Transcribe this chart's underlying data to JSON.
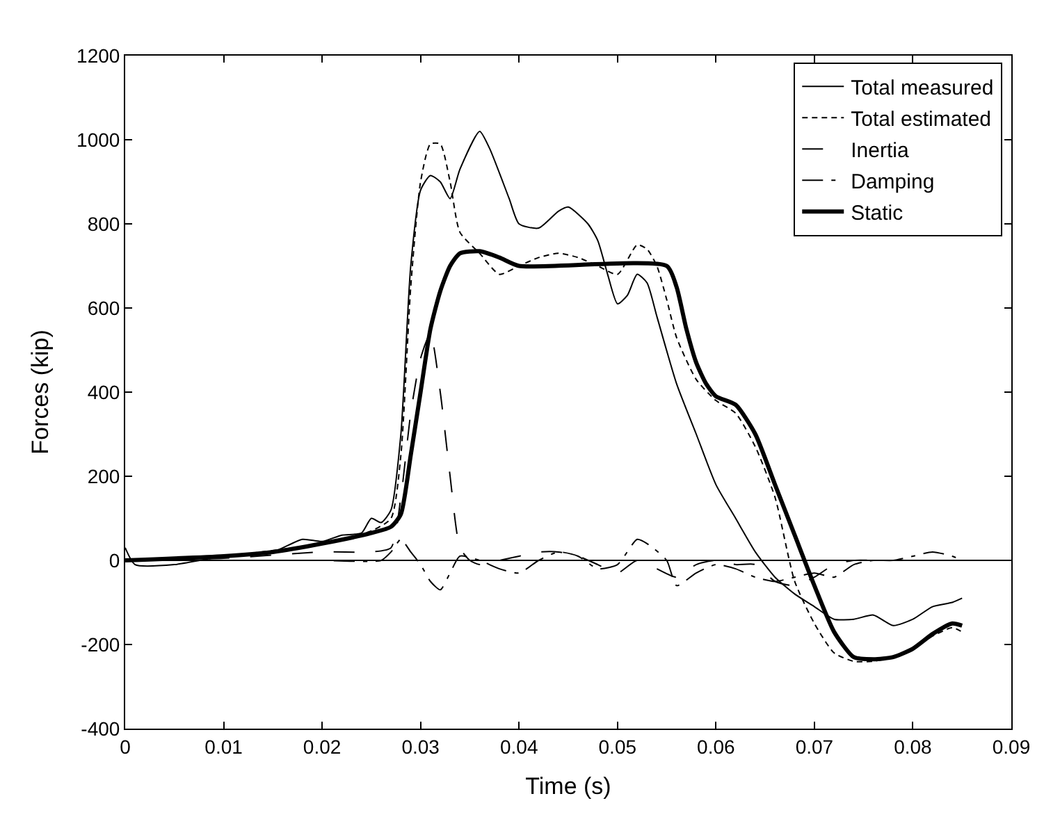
{
  "chart_data": {
    "type": "line",
    "xlabel": "Time (s)",
    "ylabel": "Forces (kip)",
    "xlim": [
      0,
      0.09
    ],
    "xticks": [
      0,
      0.01,
      0.02,
      0.03,
      0.04,
      0.05,
      0.06,
      0.07,
      0.08,
      0.09
    ],
    "ylim": [
      -400,
      1200
    ],
    "yticks": [
      -400,
      -200,
      0,
      200,
      400,
      600,
      800,
      1000,
      1200
    ],
    "grid": false,
    "legend": "top right",
    "ref_lines": [
      {
        "axis": "y",
        "value": 0,
        "color": "#000000",
        "line_style": "solid"
      }
    ],
    "series": [
      {
        "name": "Total measured",
        "color": "#000000",
        "line_style": "solid",
        "x": [
          0,
          0.001,
          0.005,
          0.01,
          0.015,
          0.018,
          0.02,
          0.022,
          0.024,
          0.025,
          0.026,
          0.027,
          0.028,
          0.029,
          0.03,
          0.031,
          0.032,
          0.033,
          0.034,
          0.036,
          0.037,
          0.039,
          0.04,
          0.042,
          0.044,
          0.045,
          0.047,
          0.048,
          0.049,
          0.05,
          0.051,
          0.052,
          0.053,
          0.054,
          0.056,
          0.058,
          0.06,
          0.062,
          0.064,
          0.066,
          0.068,
          0.07,
          0.072,
          0.074,
          0.076,
          0.078,
          0.08,
          0.082,
          0.084,
          0.085
        ],
        "values": [
          30,
          -10,
          -10,
          10,
          20,
          50,
          45,
          60,
          65,
          100,
          90,
          120,
          300,
          700,
          880,
          915,
          900,
          860,
          930,
          1020,
          980,
          860,
          800,
          790,
          830,
          840,
          800,
          760,
          680,
          610,
          630,
          680,
          660,
          580,
          420,
          300,
          180,
          100,
          20,
          -40,
          -80,
          -110,
          -140,
          -140,
          -130,
          -155,
          -140,
          -110,
          -100,
          -90
        ]
      },
      {
        "name": "Total estimated",
        "color": "#000000",
        "line_style": "dashed",
        "x": [
          0,
          0.01,
          0.02,
          0.025,
          0.027,
          0.028,
          0.029,
          0.03,
          0.031,
          0.032,
          0.033,
          0.034,
          0.036,
          0.038,
          0.04,
          0.042,
          0.044,
          0.046,
          0.048,
          0.05,
          0.052,
          0.053,
          0.054,
          0.055,
          0.056,
          0.058,
          0.06,
          0.062,
          0.064,
          0.066,
          0.068,
          0.07,
          0.072,
          0.074,
          0.076,
          0.078,
          0.08,
          0.082,
          0.084,
          0.085
        ],
        "values": [
          0,
          10,
          40,
          70,
          100,
          250,
          650,
          900,
          990,
          990,
          900,
          780,
          730,
          680,
          700,
          720,
          730,
          720,
          700,
          680,
          750,
          740,
          700,
          620,
          530,
          430,
          380,
          350,
          270,
          150,
          -50,
          -150,
          -220,
          -240,
          -240,
          -230,
          -210,
          -180,
          -160,
          -170
        ]
      },
      {
        "name": "Inertia",
        "color": "#000000",
        "line_style": "longdash",
        "x": [
          0,
          0.01,
          0.02,
          0.025,
          0.027,
          0.028,
          0.029,
          0.03,
          0.031,
          0.032,
          0.033,
          0.034,
          0.035,
          0.036,
          0.038,
          0.04,
          0.042,
          0.044,
          0.046,
          0.048,
          0.05,
          0.052,
          0.054,
          0.056,
          0.058,
          0.06,
          0.062,
          0.064,
          0.066,
          0.068,
          0.07,
          0.072,
          0.074,
          0.076,
          0.078,
          0.08,
          0.082,
          0.085
        ],
        "values": [
          0,
          5,
          20,
          20,
          30,
          150,
          350,
          480,
          540,
          400,
          200,
          30,
          0,
          -10,
          0,
          10,
          20,
          20,
          10,
          -10,
          -30,
          0,
          -20,
          -40,
          -10,
          0,
          -10,
          -10,
          -50,
          -60,
          -40,
          -10,
          0,
          0,
          0,
          0,
          0,
          0
        ]
      },
      {
        "name": "Damping",
        "color": "#000000",
        "line_style": "longdashdot",
        "x": [
          0,
          0.01,
          0.02,
          0.026,
          0.027,
          0.028,
          0.029,
          0.03,
          0.031,
          0.032,
          0.033,
          0.034,
          0.036,
          0.038,
          0.04,
          0.042,
          0.044,
          0.046,
          0.048,
          0.05,
          0.052,
          0.053,
          0.055,
          0.056,
          0.058,
          0.06,
          0.062,
          0.064,
          0.066,
          0.068,
          0.07,
          0.072,
          0.074,
          0.076,
          0.078,
          0.08,
          0.082,
          0.084,
          0.085
        ],
        "values": [
          0,
          0,
          0,
          0,
          20,
          50,
          20,
          -10,
          -50,
          -70,
          -30,
          10,
          0,
          -20,
          -30,
          0,
          20,
          10,
          -20,
          -10,
          50,
          40,
          0,
          -60,
          -30,
          -10,
          -20,
          -40,
          -50,
          -40,
          -30,
          -40,
          -10,
          0,
          0,
          10,
          20,
          10,
          0
        ]
      },
      {
        "name": "Static",
        "color": "#000000",
        "line_style": "solid",
        "x": [
          0,
          0.01,
          0.015,
          0.02,
          0.025,
          0.027,
          0.028,
          0.029,
          0.03,
          0.031,
          0.032,
          0.033,
          0.034,
          0.036,
          0.038,
          0.04,
          0.055,
          0.056,
          0.057,
          0.058,
          0.059,
          0.06,
          0.062,
          0.064,
          0.066,
          0.068,
          0.07,
          0.072,
          0.074,
          0.076,
          0.078,
          0.08,
          0.082,
          0.084,
          0.085
        ],
        "values": [
          0,
          10,
          20,
          40,
          65,
          80,
          110,
          250,
          400,
          550,
          640,
          700,
          730,
          735,
          720,
          700,
          700,
          650,
          550,
          470,
          420,
          390,
          370,
          300,
          180,
          60,
          -60,
          -170,
          -230,
          -235,
          -230,
          -210,
          -175,
          -150,
          -155
        ]
      }
    ]
  }
}
